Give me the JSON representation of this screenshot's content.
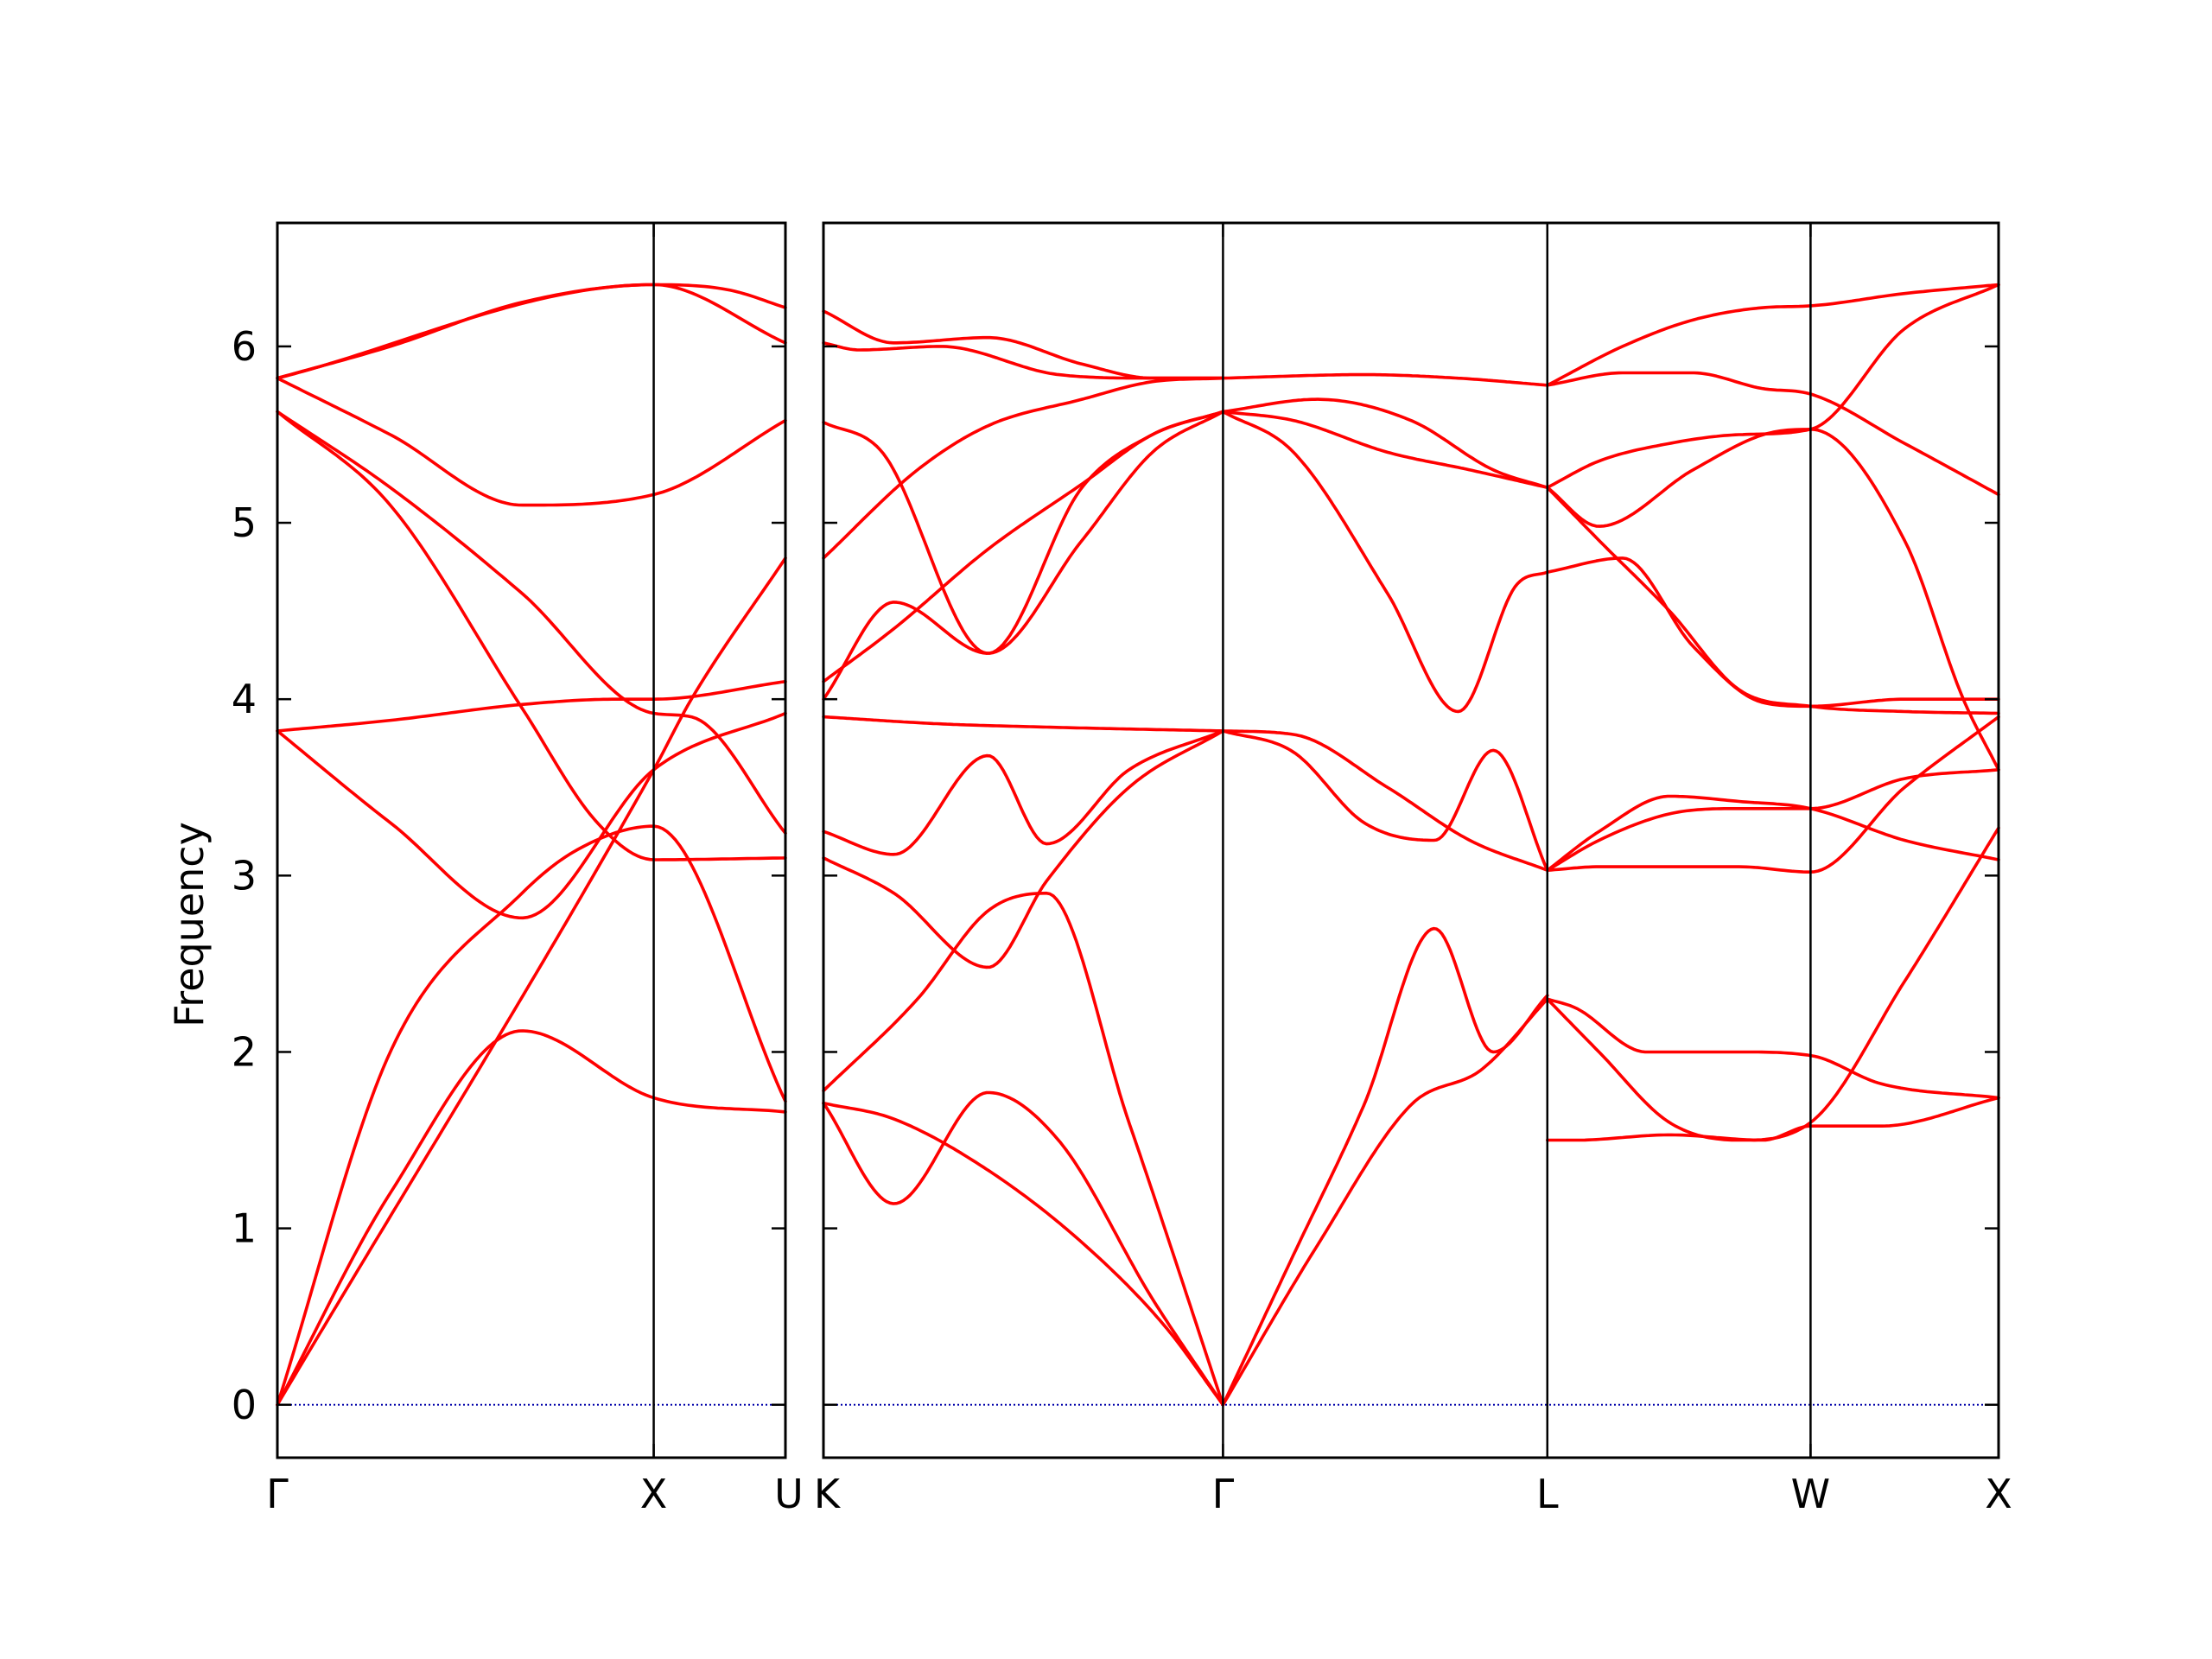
{
  "chart_data": {
    "type": "line",
    "ylabel": "Frequency",
    "ylim": [
      -0.3,
      6.7
    ],
    "yticks": [
      0,
      1,
      2,
      3,
      4,
      5,
      6
    ],
    "grid": false,
    "legend": "none",
    "line_color": "#ff0000",
    "zero_line_color": "#0000aa",
    "panels": [
      {
        "name": "panel-gamma-x-u",
        "x_range": [
          0,
          1.35
        ],
        "ticks": [
          {
            "x": 0,
            "label": "Γ"
          },
          {
            "x": 1.0,
            "label": "X"
          },
          {
            "x": 1.35,
            "label": "U"
          }
        ],
        "bands": [
          {
            "x": [
              0,
              0.3,
              0.65,
              1.0,
              1.35
            ],
            "y": [
              0,
              1.2,
              2.12,
              1.74,
              1.66
            ]
          },
          {
            "x": [
              0,
              0.3,
              0.65,
              0.8,
              1.0,
              1.35
            ],
            "y": [
              0,
              2.0,
              2.9,
              3.15,
              3.28,
              1.72
            ]
          },
          {
            "x": [
              0,
              0.3,
              0.65,
              1.0,
              1.35
            ],
            "y": [
              3.82,
              3.3,
              2.76,
              3.6,
              3.92
            ]
          },
          {
            "x": [
              0,
              0.3,
              0.65,
              0.9,
              1.0,
              1.35
            ],
            "y": [
              3.82,
              3.88,
              3.97,
              4.0,
              4.0,
              4.1
            ]
          },
          {
            "x": [
              0,
              0.3,
              0.65,
              0.85,
              1.0,
              1.35
            ],
            "y": [
              5.63,
              5.1,
              3.95,
              3.3,
              3.09,
              3.1
            ]
          },
          {
            "x": [
              0,
              0.3,
              0.65,
              1.0,
              1.1,
              1.35
            ],
            "y": [
              5.63,
              5.2,
              4.6,
              3.92,
              3.9,
              3.24
            ]
          },
          {
            "x": [
              0,
              0.3,
              0.65,
              1.0,
              1.35
            ],
            "y": [
              5.82,
              5.5,
              5.1,
              5.16,
              5.58
            ]
          },
          {
            "x": [
              0,
              0.3,
              0.65,
              1.0,
              1.35
            ],
            "y": [
              5.82,
              6.0,
              6.25,
              6.35,
              6.02
            ]
          },
          {
            "x": [
              0,
              1.0,
              1.2,
              1.35
            ],
            "y": [
              5.82,
              6.35,
              6.32,
              6.22
            ]
          },
          {
            "x": [
              0,
              1.0,
              1.1,
              1.35
            ],
            "y": [
              0,
              3.6,
              4.0,
              4.8
            ]
          }
        ]
      },
      {
        "name": "panel-k-gamma-l-w-x",
        "x_range": [
          0,
          5.0
        ],
        "ticks": [
          {
            "x": 0,
            "label": "K"
          },
          {
            "x": 1.7,
            "label": "Γ"
          },
          {
            "x": 3.08,
            "label": "L"
          },
          {
            "x": 4.2,
            "label": "W"
          },
          {
            "x": 5.0,
            "label": "X"
          }
        ],
        "bands": [
          {
            "x": [
              0,
              0.3,
              0.7,
              1.1,
              1.45,
              1.7
            ],
            "y": [
              1.71,
              1.62,
              1.33,
              0.92,
              0.45,
              0
            ]
          },
          {
            "x": [
              0,
              0.3,
              0.7,
              1.0,
              1.4,
              1.7
            ],
            "y": [
              1.71,
              1.14,
              1.77,
              1.5,
              0.6,
              0
            ]
          },
          {
            "x": [
              0,
              0.4,
              0.7,
              0.95,
              1.3,
              1.7
            ],
            "y": [
              1.78,
              2.3,
              2.8,
              2.9,
              1.6,
              0
            ]
          },
          {
            "x": [
              0,
              0.3,
              0.7,
              0.95,
              1.3,
              1.7
            ],
            "y": [
              3.1,
              2.9,
              2.48,
              2.97,
              3.5,
              3.82
            ]
          },
          {
            "x": [
              0,
              0.3,
              0.7,
              0.95,
              1.3,
              1.7
            ],
            "y": [
              3.25,
              3.12,
              3.68,
              3.18,
              3.6,
              3.82
            ]
          },
          {
            "x": [
              0,
              0.5,
              1.0,
              1.7
            ],
            "y": [
              3.9,
              3.86,
              3.84,
              3.82
            ]
          },
          {
            "x": [
              0,
              0.3,
              0.7,
              1.1,
              1.4,
              1.7
            ],
            "y": [
              4.1,
              4.4,
              4.85,
              5.22,
              5.5,
              5.63
            ]
          },
          {
            "x": [
              0,
              0.3,
              0.7,
              1.1,
              1.4,
              1.7
            ],
            "y": [
              4.0,
              4.55,
              4.26,
              5.2,
              5.5,
              5.63
            ]
          },
          {
            "x": [
              0,
              0.25,
              0.7,
              1.1,
              1.4,
              1.7
            ],
            "y": [
              5.57,
              5.4,
              4.26,
              4.9,
              5.4,
              5.63
            ]
          },
          {
            "x": [
              0,
              0.4,
              0.7,
              1.1,
              1.4,
              1.7
            ],
            "y": [
              4.8,
              5.3,
              5.55,
              5.7,
              5.8,
              5.82
            ]
          },
          {
            "x": [
              0,
              0.3,
              0.7,
              1.1,
              1.4,
              1.7
            ],
            "y": [
              6.2,
              6.02,
              6.05,
              5.9,
              5.82,
              5.82
            ]
          },
          {
            "x": [
              0,
              0.15,
              0.5,
              1.0,
              1.4,
              1.7
            ],
            "y": [
              6.02,
              5.98,
              6.0,
              5.84,
              5.82,
              5.82
            ]
          },
          {
            "x": [
              1.7,
              2.0,
              2.3,
              2.6,
              2.85,
              3.08
            ],
            "y": [
              0,
              0.85,
              1.7,
              2.7,
              2.0,
              2.32
            ]
          },
          {
            "x": [
              1.7,
              2.1,
              2.5,
              2.8,
              3.08
            ],
            "y": [
              0,
              0.9,
              1.7,
              1.9,
              2.3
            ]
          },
          {
            "x": [
              1.7,
              2.0,
              2.3,
              2.6,
              2.85,
              3.08
            ],
            "y": [
              3.82,
              3.7,
              3.3,
              3.2,
              3.71,
              3.03
            ]
          },
          {
            "x": [
              1.7,
              2.0,
              2.4,
              2.75,
              3.08
            ],
            "y": [
              3.82,
              3.8,
              3.5,
              3.2,
              3.03
            ]
          },
          {
            "x": [
              1.7,
              2.0,
              2.4,
              2.7,
              2.95,
              3.08
            ],
            "y": [
              5.63,
              5.4,
              4.6,
              3.93,
              4.65,
              4.72
            ]
          },
          {
            "x": [
              1.7,
              2.0,
              2.4,
              2.75,
              3.08
            ],
            "y": [
              5.63,
              5.58,
              5.4,
              5.3,
              5.2
            ]
          },
          {
            "x": [
              1.7,
              2.1,
              2.5,
              2.85,
              3.08
            ],
            "y": [
              5.63,
              5.7,
              5.58,
              5.3,
              5.2
            ]
          },
          {
            "x": [
              1.7,
              2.3,
              2.7,
              3.08
            ],
            "y": [
              5.82,
              5.84,
              5.82,
              5.78
            ]
          },
          {
            "x": [
              3.08,
              3.2,
              3.6,
              4.0,
              4.2,
              4.5,
              5.0
            ],
            "y": [
              1.5,
              1.5,
              1.53,
              1.5,
              1.58,
              1.58,
              1.74
            ]
          },
          {
            "x": [
              3.08,
              3.2,
              3.5,
              3.9,
              4.2,
              4.5,
              5.0
            ],
            "y": [
              2.3,
              2.25,
              2.0,
              2.0,
              1.98,
              1.82,
              1.74
            ]
          },
          {
            "x": [
              3.08,
              3.3,
              3.6,
              3.9,
              4.2,
              4.6,
              5.0
            ],
            "y": [
              2.3,
              2.0,
              1.6,
              1.5,
              1.6,
              2.4,
              3.27
            ]
          },
          {
            "x": [
              3.08,
              3.3,
              3.6,
              3.9,
              4.2,
              4.6,
              5.0
            ],
            "y": [
              3.03,
              3.05,
              3.05,
              3.05,
              3.02,
              3.5,
              3.9
            ]
          },
          {
            "x": [
              3.08,
              3.3,
              3.6,
              3.9,
              4.2,
              4.6,
              5.0
            ],
            "y": [
              3.03,
              3.2,
              3.35,
              3.38,
              3.38,
              3.55,
              3.6
            ]
          },
          {
            "x": [
              3.08,
              3.3,
              3.6,
              3.9,
              4.2,
              4.6,
              5.0
            ],
            "y": [
              3.03,
              3.25,
              3.45,
              3.42,
              3.38,
              3.2,
              3.09
            ]
          },
          {
            "x": [
              3.08,
              3.4,
              3.7,
              4.0,
              4.2,
              4.6,
              5.0
            ],
            "y": [
              4.72,
              4.8,
              4.3,
              3.98,
              3.96,
              4.0,
              4.0
            ]
          },
          {
            "x": [
              3.08,
              3.3,
              3.6,
              3.9,
              4.2,
              4.6,
              5.0
            ],
            "y": [
              5.2,
              4.9,
              4.5,
              4.05,
              3.96,
              3.93,
              3.92
            ]
          },
          {
            "x": [
              3.08,
              3.3,
              3.7,
              4.0,
              4.2,
              4.6,
              4.85,
              5.0
            ],
            "y": [
              5.2,
              4.98,
              5.3,
              5.5,
              5.53,
              4.9,
              4.0,
              3.6
            ]
          },
          {
            "x": [
              3.08,
              3.3,
              3.6,
              3.9,
              4.2,
              4.6,
              5.0
            ],
            "y": [
              5.2,
              5.35,
              5.45,
              5.5,
              5.53,
              6.1,
              6.35
            ]
          },
          {
            "x": [
              3.08,
              3.4,
              3.7,
              4.0,
              4.2,
              4.6,
              5.0
            ],
            "y": [
              5.78,
              5.85,
              5.85,
              5.76,
              5.73,
              5.45,
              5.16
            ]
          },
          {
            "x": [
              3.08,
              3.4,
              3.7,
              4.0,
              4.2,
              4.6,
              5.0
            ],
            "y": [
              5.78,
              6.0,
              6.15,
              6.22,
              6.23,
              6.3,
              6.35
            ]
          }
        ]
      }
    ]
  }
}
